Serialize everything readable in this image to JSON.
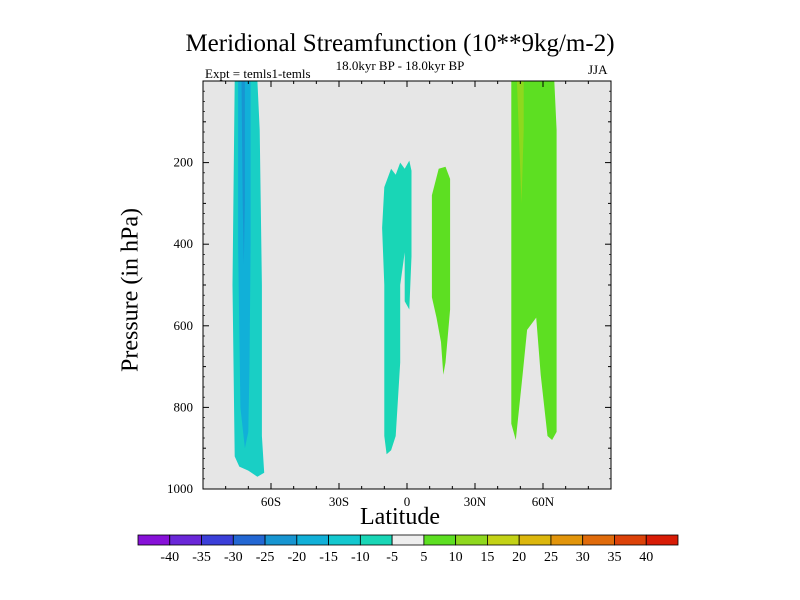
{
  "chart_data": {
    "type": "contour",
    "title": "Meridional Streamfunction (10**9kg/m-2)",
    "subtitle_left": "Expt = temls1-temls",
    "subtitle_center": "18.0kyr BP - 18.0kyr BP",
    "subtitle_right": "JJA",
    "xlabel": "Latitude",
    "ylabel": "Pressure (in hPa)",
    "xlim": [
      -90,
      90
    ],
    "ylim": [
      1000,
      0
    ],
    "x_ticks": [
      {
        "value": -60,
        "label": "60S"
      },
      {
        "value": -30,
        "label": "30S"
      },
      {
        "value": 0,
        "label": "0"
      },
      {
        "value": 30,
        "label": "30N"
      },
      {
        "value": 60,
        "label": "60N"
      }
    ],
    "y_ticks": [
      {
        "value": 200,
        "label": "200"
      },
      {
        "value": 400,
        "label": "400"
      },
      {
        "value": 600,
        "label": "600"
      },
      {
        "value": 800,
        "label": "800"
      },
      {
        "value": 1000,
        "label": "1000"
      }
    ],
    "background_color": "#e6e6e6",
    "contour_regions": [
      {
        "name": "sh-band-outer",
        "level": "-10 to -5",
        "color": "#19cfc5",
        "points": [
          [
            -76,
            0
          ],
          [
            -66,
            0
          ],
          [
            -65,
            120
          ],
          [
            -64,
            500
          ],
          [
            -64,
            870
          ],
          [
            -63,
            960
          ],
          [
            -66,
            970
          ],
          [
            -70,
            955
          ],
          [
            -74,
            945
          ],
          [
            -76,
            920
          ],
          [
            -77,
            500
          ],
          [
            -76,
            0
          ]
        ]
      },
      {
        "name": "sh-band-inner",
        "level": "-15 to -10",
        "color": "#11b0d8",
        "points": [
          [
            -74.5,
            0
          ],
          [
            -69,
            0
          ],
          [
            -69,
            400
          ],
          [
            -69.5,
            700
          ],
          [
            -70,
            860
          ],
          [
            -71.5,
            900
          ],
          [
            -73.5,
            800
          ],
          [
            -74.5,
            400
          ],
          [
            -74.5,
            0
          ]
        ]
      },
      {
        "name": "sh-band-core",
        "level": "-20 to -15",
        "color": "#1795d1",
        "points": [
          [
            -73,
            0
          ],
          [
            -71.5,
            0
          ],
          [
            -71.5,
            300
          ],
          [
            -72,
            450
          ],
          [
            -72.5,
            300
          ],
          [
            -73,
            0
          ]
        ]
      },
      {
        "name": "equatorial-negative",
        "level": "-10 to -5",
        "color": "#19d6b6",
        "points": [
          [
            -10,
            260
          ],
          [
            -7,
            215
          ],
          [
            -5,
            230
          ],
          [
            -3,
            200
          ],
          [
            -1,
            215
          ],
          [
            1,
            195
          ],
          [
            2,
            220
          ],
          [
            2,
            430
          ],
          [
            1,
            560
          ],
          [
            -1,
            540
          ],
          [
            -1,
            420
          ],
          [
            -3,
            500
          ],
          [
            -3,
            690
          ],
          [
            -5,
            870
          ],
          [
            -7,
            905
          ],
          [
            -9,
            915
          ],
          [
            -10,
            870
          ],
          [
            -10,
            500
          ],
          [
            -11,
            360
          ],
          [
            -10,
            260
          ]
        ]
      },
      {
        "name": "tropical-positive",
        "level": "5 to 10",
        "color": "#5ddf22",
        "points": [
          [
            11,
            280
          ],
          [
            14,
            215
          ],
          [
            17,
            210
          ],
          [
            19,
            240
          ],
          [
            19,
            560
          ],
          [
            17,
            690
          ],
          [
            16,
            720
          ],
          [
            15,
            640
          ],
          [
            13,
            580
          ],
          [
            11,
            530
          ],
          [
            11,
            280
          ]
        ]
      },
      {
        "name": "nh-band-outer",
        "level": "5 to 10",
        "color": "#5ddf22",
        "points": [
          [
            46,
            0
          ],
          [
            65,
            0
          ],
          [
            66,
            120
          ],
          [
            66,
            860
          ],
          [
            64,
            880
          ],
          [
            62,
            870
          ],
          [
            59,
            720
          ],
          [
            57,
            580
          ],
          [
            53,
            610
          ],
          [
            51,
            720
          ],
          [
            48,
            880
          ],
          [
            46,
            840
          ],
          [
            46,
            0
          ]
        ]
      },
      {
        "name": "nh-band-inner",
        "level": "10 to 15",
        "color": "#8fd81e",
        "points": [
          [
            48.5,
            0
          ],
          [
            51.5,
            0
          ],
          [
            51.5,
            120
          ],
          [
            50.5,
            300
          ],
          [
            49.5,
            150
          ],
          [
            48.5,
            0
          ]
        ]
      }
    ],
    "colorbar": {
      "labels": [
        "-40",
        "-35",
        "-30",
        "-25",
        "-20",
        "-15",
        "-10",
        "-5",
        "5",
        "10",
        "15",
        "20",
        "25",
        "30",
        "35",
        "40"
      ],
      "colors": [
        "#8711d8",
        "#6a27d8",
        "#3b3fd9",
        "#2367d3",
        "#1795d1",
        "#11b0d8",
        "#14c8cf",
        "#19d6b6",
        "#eeeeee",
        "#5ddf22",
        "#8fd81e",
        "#c3d216",
        "#dcb70d",
        "#e2950b",
        "#e06b0b",
        "#dc4209",
        "#d81c06"
      ]
    }
  }
}
